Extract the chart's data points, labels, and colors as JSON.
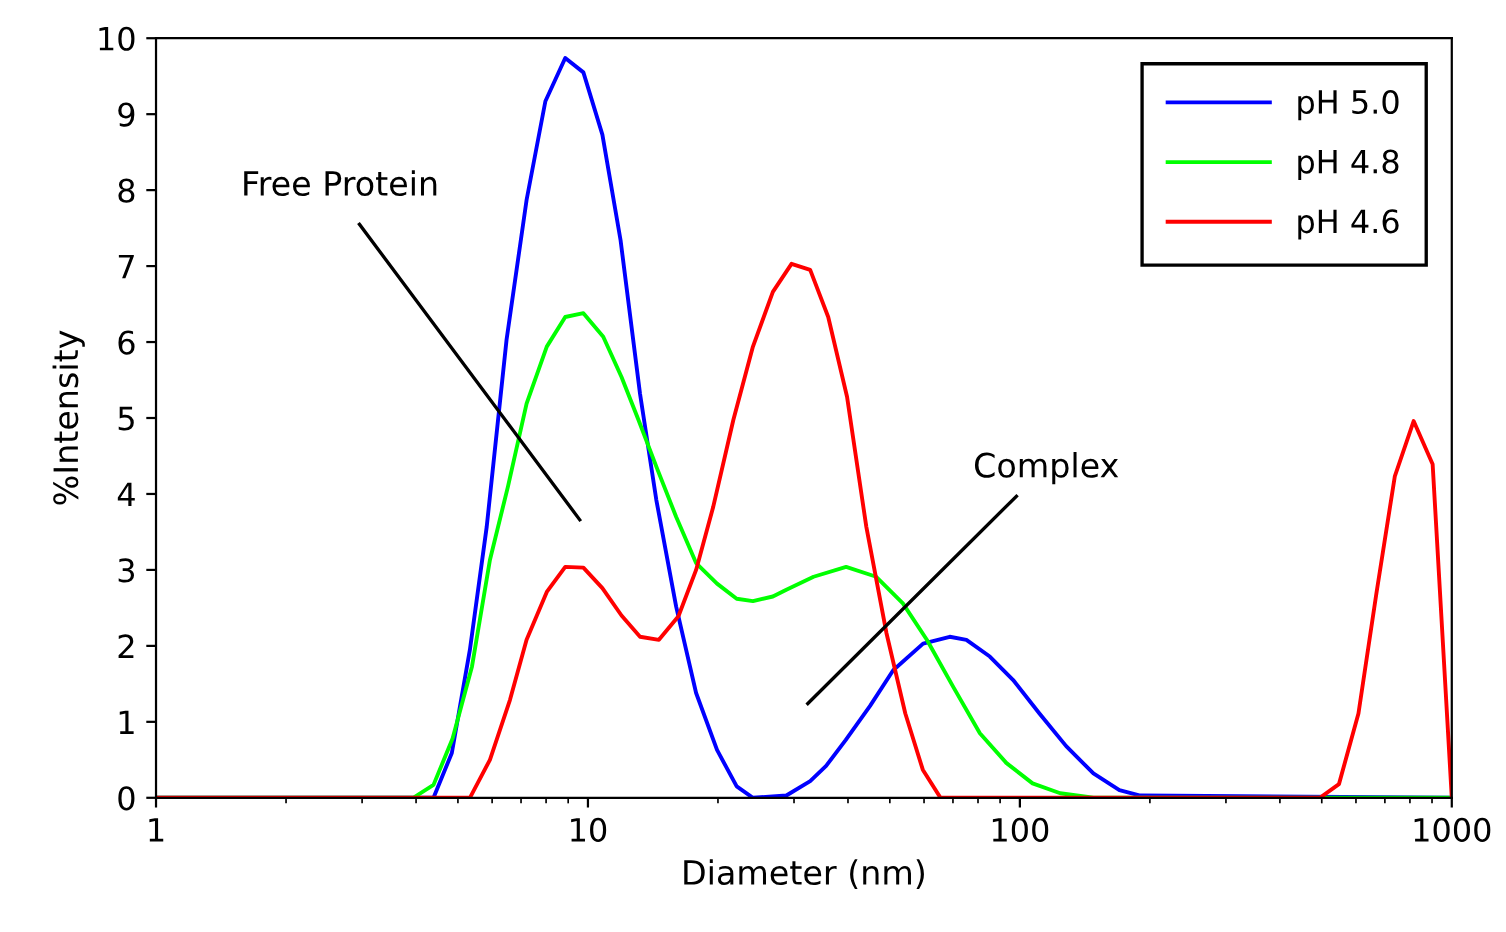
{
  "chart_data": {
    "type": "line",
    "xlabel": "Diameter (nm)",
    "ylabel": "%Intensity",
    "log": "x",
    "xlim": [
      1,
      1000
    ],
    "xticks": [
      1,
      10,
      100,
      1000
    ],
    "ylim": [
      0,
      10
    ],
    "yticks": [
      0,
      1,
      2,
      3,
      4,
      5,
      6,
      7,
      8,
      9,
      10
    ],
    "grid": false,
    "legend": "top right",
    "marker": "none",
    "line_style": "solid",
    "series": [
      {
        "name": "pH 5.0",
        "color": "#0000ff",
        "x": [
          1,
          4.39,
          4.84,
          5.33,
          5.83,
          6.48,
          7.21,
          7.97,
          8.86,
          9.76,
          10.8,
          11.9,
          13.2,
          14.4,
          16.0,
          17.8,
          19.9,
          22.1,
          24.1,
          28.8,
          32.7,
          35.6,
          39.5,
          45.0,
          50.9,
          59.7,
          68.8,
          75.2,
          85.2,
          96.5,
          111,
          128,
          148,
          170,
          190,
          1000
        ],
        "values": [
          0,
          0,
          0.59,
          1.95,
          3.57,
          6.03,
          7.87,
          9.17,
          9.74,
          9.55,
          8.73,
          7.34,
          5.32,
          3.92,
          2.52,
          1.38,
          0.63,
          0.15,
          0,
          0.03,
          0.22,
          0.42,
          0.76,
          1.21,
          1.68,
          2.03,
          2.12,
          2.08,
          1.86,
          1.55,
          1.11,
          0.68,
          0.32,
          0.1,
          0.03,
          0
        ]
      },
      {
        "name": "pH 4.8",
        "color": "#00ff00",
        "x": [
          1,
          3.94,
          4.39,
          4.86,
          5.39,
          5.93,
          6.53,
          7.21,
          8.03,
          8.86,
          9.76,
          10.85,
          11.96,
          13.1,
          14.4,
          16.0,
          17.8,
          19.9,
          22.1,
          24.1,
          26.8,
          28.8,
          33.3,
          39.6,
          46.5,
          53.6,
          60.9,
          70.1,
          80.8,
          93.0,
          107,
          124,
          148,
          1000
        ],
        "values": [
          0,
          0,
          0.17,
          0.78,
          1.73,
          3.13,
          4.1,
          5.19,
          5.94,
          6.33,
          6.38,
          6.07,
          5.54,
          4.97,
          4.36,
          3.7,
          3.09,
          2.82,
          2.62,
          2.59,
          2.65,
          2.74,
          2.91,
          3.04,
          2.91,
          2.56,
          2.08,
          1.46,
          0.85,
          0.46,
          0.19,
          0.06,
          0,
          0
        ]
      },
      {
        "name": "pH 4.6",
        "color": "#ff0000",
        "x": [
          1,
          5.33,
          5.93,
          6.6,
          7.21,
          8.03,
          8.86,
          9.76,
          10.8,
          11.96,
          13.2,
          14.6,
          16.2,
          17.8,
          19.5,
          21.7,
          24.1,
          26.8,
          29.6,
          32.7,
          36.0,
          39.8,
          44.1,
          49.1,
          54.3,
          59.6,
          65.5,
          495,
          548,
          608,
          669,
          738,
          816,
          903,
          1000
        ],
        "values": [
          0,
          0,
          0.5,
          1.29,
          2.08,
          2.71,
          3.04,
          3.03,
          2.76,
          2.4,
          2.12,
          2.08,
          2.39,
          3.0,
          3.83,
          4.97,
          5.94,
          6.66,
          7.03,
          6.95,
          6.33,
          5.28,
          3.57,
          2.17,
          1.11,
          0.37,
          0,
          0,
          0.18,
          1.11,
          2.69,
          4.23,
          4.96,
          4.39,
          0
        ]
      }
    ],
    "annotations": [
      "Free Protein",
      "Complex"
    ]
  }
}
